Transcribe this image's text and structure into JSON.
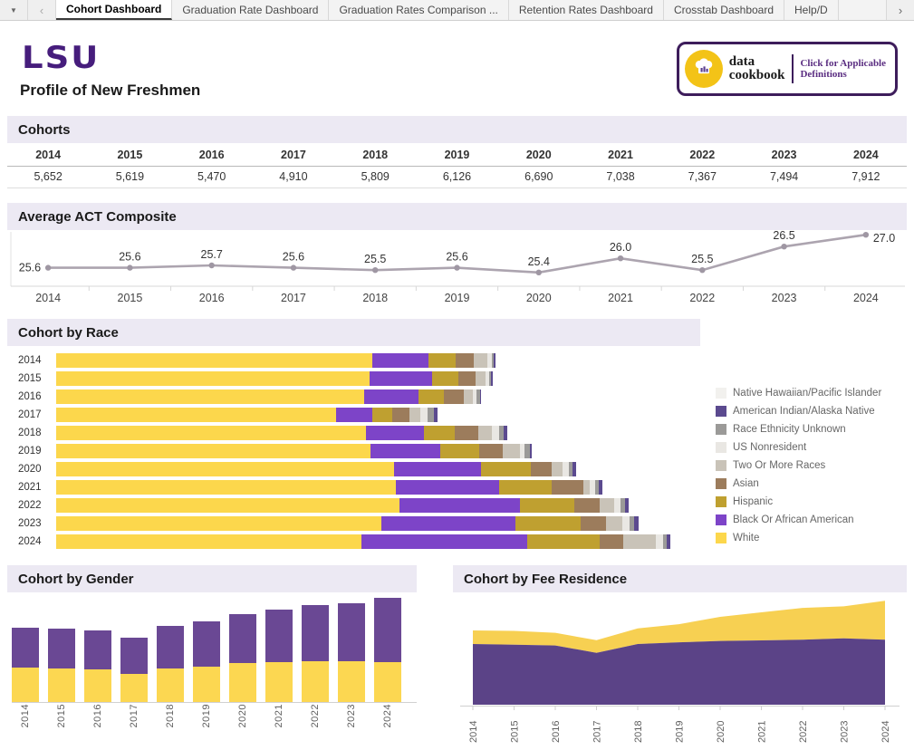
{
  "tabbar": {
    "dropdown_icon": "▼",
    "prev_icon": "‹",
    "next_icon": "›",
    "tabs": [
      {
        "label": "Cohort Dashboard",
        "active": true
      },
      {
        "label": "Graduation Rate Dashboard",
        "active": false
      },
      {
        "label": "Graduation Rates Comparison ...",
        "active": false
      },
      {
        "label": "Retention Rates Dashboard",
        "active": false
      },
      {
        "label": "Crosstab Dashboard",
        "active": false
      },
      {
        "label": "Help/D",
        "active": false
      }
    ]
  },
  "header": {
    "logo_text": "LSU",
    "title": "Profile of New Freshmen",
    "cookbook": {
      "brand_line1": "data",
      "brand_line2": "cookbook",
      "note_line1": "Click for Applicable",
      "note_line2": "Definitions"
    }
  },
  "section_titles": {
    "cohorts": "Cohorts",
    "act": "Average ACT Composite",
    "race": "Cohort by Race",
    "gender": "Cohort by Gender",
    "fee": "Cohort by Fee Residence"
  },
  "colors": {
    "lsu_purple": "#461D7C",
    "band_bg": "#ECE9F3",
    "act_line": "#ACA4AF",
    "axis_gray": "#d7d7d7",
    "label_gray": "#5f5f5f"
  },
  "chart_data": [
    {
      "type": "table",
      "name": "cohorts",
      "title": "Cohorts",
      "categories": [
        "2014",
        "2015",
        "2016",
        "2017",
        "2018",
        "2019",
        "2020",
        "2021",
        "2022",
        "2023",
        "2024"
      ],
      "values": [
        5652,
        5619,
        5470,
        4910,
        5809,
        6126,
        6690,
        7038,
        7367,
        7494,
        7912
      ],
      "formatted": [
        "5,652",
        "5,619",
        "5,470",
        "4,910",
        "5,809",
        "6,126",
        "6,690",
        "7,038",
        "7,367",
        "7,494",
        "7,912"
      ]
    },
    {
      "type": "line",
      "name": "average-act-composite",
      "title": "Average ACT Composite",
      "x": [
        "2014",
        "2015",
        "2016",
        "2017",
        "2018",
        "2019",
        "2020",
        "2021",
        "2022",
        "2023",
        "2024"
      ],
      "values": [
        25.6,
        25.6,
        25.7,
        25.6,
        25.5,
        25.6,
        25.4,
        26.0,
        25.5,
        26.5,
        27.0
      ],
      "labels": [
        "25.6",
        "25.6",
        "25.7",
        "25.6",
        "25.5",
        "25.6",
        "25.4",
        "26.0",
        "25.5",
        "26.5",
        "27.0"
      ],
      "ylim": [
        25.2,
        27.2
      ],
      "line_color": "#ACA4AF"
    },
    {
      "type": "bar",
      "subtype": "stacked-horizontal",
      "name": "cohort-by-race",
      "title": "Cohort by Race",
      "categories": [
        "2014",
        "2015",
        "2016",
        "2017",
        "2018",
        "2019",
        "2020",
        "2021",
        "2022",
        "2023",
        "2024"
      ],
      "totals": [
        5652,
        5619,
        5470,
        4910,
        5809,
        6126,
        6690,
        7038,
        7367,
        7494,
        7912
      ],
      "xmax": 8000,
      "series": [
        {
          "name": "White",
          "color": "#FCD74C",
          "percents": [
            72.1,
            71.8,
            72.5,
            73.4,
            68.7,
            66.1,
            65.1,
            62.2,
            60.0,
            55.8,
            49.7
          ]
        },
        {
          "name": "Black Or African American",
          "color": "#7D44C8",
          "percents": [
            12.6,
            14.3,
            12.8,
            9.5,
            12.9,
            14.7,
            16.7,
            18.9,
            21.0,
            23.1,
            27.0
          ]
        },
        {
          "name": "Hispanic",
          "color": "#BFA030",
          "percents": [
            6.2,
            6.0,
            6.0,
            5.2,
            6.8,
            8.2,
            9.5,
            9.5,
            9.5,
            11.2,
            11.8
          ]
        },
        {
          "name": "Asian",
          "color": "#9C7C5C",
          "percents": [
            4.3,
            4.1,
            4.7,
            4.5,
            5.2,
            4.8,
            4.0,
            5.8,
            4.5,
            4.4,
            3.8
          ]
        },
        {
          "name": "Two Or More Races",
          "color": "#C9C3B8",
          "percents": [
            3.1,
            2.1,
            2.0,
            2.9,
            3.0,
            3.6,
            2.1,
            1.2,
            2.5,
            2.8,
            5.2
          ]
        },
        {
          "name": "US Nonresident",
          "color": "#E9E7E3",
          "percents": [
            1.0,
            0.9,
            1.0,
            2.0,
            1.6,
            1.0,
            1.3,
            1.0,
            1.2,
            1.2,
            1.3
          ]
        },
        {
          "name": "Race Ethnicity Unknown",
          "color": "#9B9A98",
          "percents": [
            0.4,
            0.5,
            0.7,
            1.5,
            1.0,
            1.1,
            0.7,
            0.7,
            0.7,
            0.8,
            0.6
          ]
        },
        {
          "name": "American Indian/Alaska Native",
          "color": "#5B4A8F",
          "percents": [
            0.3,
            0.3,
            0.3,
            1.0,
            0.8,
            0.5,
            0.6,
            0.7,
            0.6,
            0.7,
            0.6
          ]
        },
        {
          "name": "Native Hawaiian/Pacific Islander",
          "color": "#F2F1EE",
          "percents": [
            0,
            0,
            0,
            0,
            0,
            0,
            0,
            0,
            0,
            0,
            0
          ]
        }
      ],
      "legend": [
        {
          "name": "Native Hawaiian/Pacific Islander",
          "color": "#F2F1EE"
        },
        {
          "name": "American Indian/Alaska Native",
          "color": "#5B4A8F"
        },
        {
          "name": "Race Ethnicity Unknown",
          "color": "#9B9A98"
        },
        {
          "name": "US Nonresident",
          "color": "#E9E7E3"
        },
        {
          "name": "Two Or More Races",
          "color": "#C9C3B8"
        },
        {
          "name": "Asian",
          "color": "#9C7C5C"
        },
        {
          "name": "Hispanic",
          "color": "#BFA030"
        },
        {
          "name": "Black Or African American",
          "color": "#7D44C8"
        },
        {
          "name": "White",
          "color": "#FCD74C"
        }
      ]
    },
    {
      "type": "bar",
      "subtype": "stacked-vertical",
      "name": "cohort-by-gender",
      "title": "Cohort by Gender",
      "categories": [
        "2014",
        "2015",
        "2016",
        "2017",
        "2018",
        "2019",
        "2020",
        "2021",
        "2022",
        "2023",
        "2024"
      ],
      "totals": [
        5652,
        5619,
        5470,
        4910,
        5809,
        6126,
        6690,
        7038,
        7367,
        7494,
        7912
      ],
      "ymax": 8000,
      "series": [
        {
          "name": "lower-yellow-series",
          "color": "#FCD751",
          "values": [
            2656,
            2585,
            2489,
            2160,
            2585,
            2726,
            2944,
            3026,
            3094,
            3073,
            3007
          ]
        },
        {
          "name": "upper-purple-series",
          "color": "#6A4894",
          "values": [
            2996,
            3034,
            2981,
            2750,
            3224,
            3400,
            3746,
            4012,
            4273,
            4421,
            4905
          ]
        }
      ]
    },
    {
      "type": "area",
      "name": "cohort-by-fee-residence",
      "title": "Cohort by Fee Residence",
      "x": [
        "2014",
        "2015",
        "2016",
        "2017",
        "2018",
        "2019",
        "2020",
        "2021",
        "2022",
        "2023",
        "2024"
      ],
      "ymax": 8000,
      "series": [
        {
          "name": "lower-purple-series",
          "color": "#5B4387",
          "values": [
            4620,
            4570,
            4510,
            3950,
            4620,
            4750,
            4850,
            4900,
            4950,
            5050,
            4950
          ]
        },
        {
          "name": "upper-yellow-series",
          "color": "#F7D052",
          "values": [
            1032,
            1049,
            960,
            960,
            1189,
            1376,
            1840,
            2138,
            2417,
            2444,
            2962
          ]
        }
      ]
    }
  ]
}
